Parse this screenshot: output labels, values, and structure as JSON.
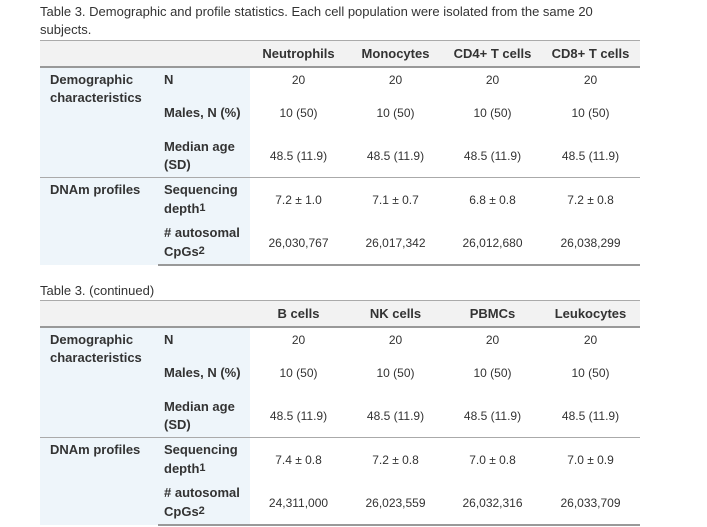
{
  "caption": "Table 3. Demographic and profile statistics. Each cell population were isolated from the same 20 subjects.",
  "tables": [
    {
      "columns": [
        "Neutrophils",
        "Monocytes",
        "CD4+ T cells",
        "CD8+ T cells"
      ],
      "groups": [
        {
          "name": "Demographic characteristics",
          "rows": [
            {
              "label": "N",
              "cells": [
                "20",
                "20",
                "20",
                "20"
              ]
            },
            {
              "label": "Males, N (%)",
              "cells": [
                "10 (50)",
                "10 (50)",
                "10 (50)",
                "10 (50)"
              ]
            },
            {
              "label": "Median age (SD)",
              "cells": [
                "48.5 (11.9)",
                "48.5 (11.9)",
                "48.5 (11.9)",
                "48.5 (11.9)"
              ]
            }
          ]
        },
        {
          "name": "DNAm profiles",
          "rows": [
            {
              "label": "Sequencing depth",
              "note": "1",
              "cells": [
                "7.2 ± 1.0",
                "7.1 ± 0.7",
                "6.8 ± 0.8",
                "7.2 ± 0.8"
              ]
            },
            {
              "label": "# autosomal CpGs",
              "note": "2",
              "cells": [
                "26,030,767",
                "26,017,342",
                "26,012,680",
                "26,038,299"
              ]
            }
          ]
        }
      ]
    },
    {
      "caption": "Table 3. (continued)",
      "columns": [
        "B cells",
        "NK cells",
        "PBMCs",
        "Leukocytes"
      ],
      "groups": [
        {
          "name": "Demographic characteristics",
          "rows": [
            {
              "label": "N",
              "cells": [
                "20",
                "20",
                "20",
                "20"
              ]
            },
            {
              "label": "Males, N (%)",
              "cells": [
                "10 (50)",
                "10 (50)",
                "10 (50)",
                "10 (50)"
              ]
            },
            {
              "label": "Median age (SD)",
              "cells": [
                "48.5 (11.9)",
                "48.5 (11.9)",
                "48.5 (11.9)",
                "48.5 (11.9)"
              ]
            }
          ]
        },
        {
          "name": "DNAm profiles",
          "rows": [
            {
              "label": "Sequencing depth",
              "note": "1",
              "cells": [
                "7.4 ± 0.8",
                "7.2 ± 0.8",
                "7.0 ± 0.8",
                "7.0 ± 0.9"
              ]
            },
            {
              "label": "# autosomal CpGs",
              "note": "2",
              "cells": [
                "24,311,000",
                "26,023,559",
                "26,032,316",
                "26,033,709"
              ]
            }
          ]
        }
      ]
    }
  ]
}
